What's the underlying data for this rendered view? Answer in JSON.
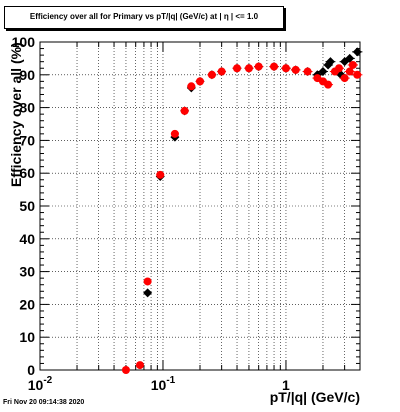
{
  "title": "Efficiency over all for Primary vs pT/|q| (GeV/c) at | η | <= 1.0",
  "footer": {
    "timestamp": "Fri Nov 20 09:14:38 2020"
  },
  "chart_data": {
    "type": "scatter",
    "xlabel": "pT/|q| (GeV/c)",
    "ylabel": "Efficiency over all (%)",
    "x_scale": "log",
    "xlim": [
      0.01,
      4.0
    ],
    "ylim": [
      0,
      100
    ],
    "grid": true,
    "y_ticks": [
      0,
      10,
      20,
      30,
      40,
      50,
      60,
      70,
      80,
      90,
      100
    ],
    "x_tick_labels": [
      {
        "value": 0.01,
        "label": "10",
        "exp": "-2"
      },
      {
        "value": 0.1,
        "label": "10",
        "exp": "-1"
      },
      {
        "value": 1,
        "label": "1",
        "exp": ""
      }
    ],
    "series": [
      {
        "color": "#000000",
        "marker": "diamond",
        "points": [
          [
            0.075,
            23.5
          ],
          [
            0.095,
            59
          ],
          [
            0.125,
            71
          ],
          [
            0.15,
            79
          ],
          [
            0.17,
            86
          ],
          [
            0.2,
            88
          ],
          [
            0.25,
            90
          ],
          [
            0.3,
            91
          ],
          [
            0.4,
            92
          ],
          [
            0.5,
            92
          ],
          [
            0.6,
            92.5
          ],
          [
            0.8,
            92.5
          ],
          [
            1.0,
            92
          ],
          [
            1.2,
            91.5
          ],
          [
            1.5,
            91
          ],
          [
            1.8,
            90
          ],
          [
            2.0,
            91
          ],
          [
            2.2,
            93
          ],
          [
            2.3,
            94
          ],
          [
            2.8,
            90
          ],
          [
            3.0,
            94
          ],
          [
            3.3,
            95
          ],
          [
            3.8,
            97
          ]
        ]
      },
      {
        "color": "#ff0000",
        "marker": "circle",
        "points": [
          [
            0.05,
            0
          ],
          [
            0.065,
            1.5
          ],
          [
            0.075,
            27
          ],
          [
            0.095,
            59.5
          ],
          [
            0.125,
            72
          ],
          [
            0.15,
            79
          ],
          [
            0.17,
            86.5
          ],
          [
            0.2,
            88
          ],
          [
            0.25,
            90
          ],
          [
            0.3,
            91
          ],
          [
            0.4,
            92
          ],
          [
            0.5,
            92
          ],
          [
            0.6,
            92.5
          ],
          [
            0.8,
            92.5
          ],
          [
            1.0,
            92
          ],
          [
            1.2,
            91.5
          ],
          [
            1.5,
            91
          ],
          [
            1.8,
            89
          ],
          [
            2.0,
            88
          ],
          [
            2.2,
            87
          ],
          [
            2.5,
            91
          ],
          [
            2.7,
            92
          ],
          [
            3.0,
            89
          ],
          [
            3.3,
            91
          ],
          [
            3.5,
            93
          ],
          [
            3.8,
            90
          ]
        ]
      }
    ]
  }
}
